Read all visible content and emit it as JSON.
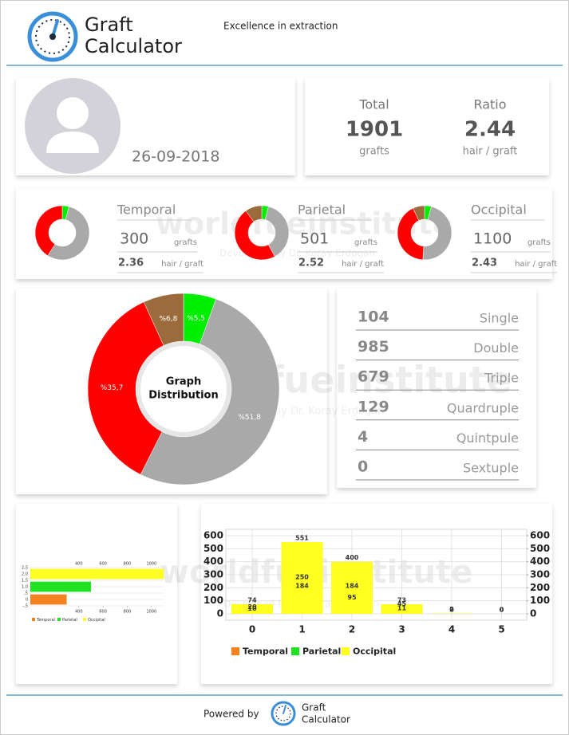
{
  "header": {
    "title": [
      "Graft",
      "Calculator"
    ],
    "tagline": "Excellence in extraction"
  },
  "profile": {
    "date": "26-09-2018"
  },
  "summary": [
    {
      "label": "Total",
      "value": 1901,
      "unit": "grafts"
    },
    {
      "label": "Ratio",
      "value": 2.44,
      "unit": "hair / graft"
    }
  ],
  "regions": [
    {
      "name": "Temporal",
      "grafts": 300,
      "grafts_unit": "grafts",
      "ratio": 2.36,
      "ratio_unit": "hair / graft"
    },
    {
      "name": "Parietal",
      "grafts": 501,
      "grafts_unit": "grafts",
      "ratio": 2.52,
      "ratio_unit": "hair / graft"
    },
    {
      "name": "Occipital",
      "grafts": 1100,
      "grafts_unit": "grafts",
      "ratio": 2.43,
      "ratio_unit": "hair / graft"
    }
  ],
  "watermark": {
    "name": "worldfueinstitute",
    "credit": "Developed by Dr. Koray Erdogan"
  },
  "graft_types": [
    {
      "count": 104,
      "name": "Single"
    },
    {
      "count": 985,
      "name": "Double"
    },
    {
      "count": 679,
      "name": "Triple"
    },
    {
      "count": 129,
      "name": "Quardruple"
    },
    {
      "count": 4,
      "name": "Quintpule"
    },
    {
      "count": 0,
      "name": "Sextuple"
    }
  ],
  "footer": {
    "label": "Powered by",
    "title": [
      "Graft",
      "Calculator"
    ]
  },
  "chart_data": [
    {
      "type": "donut",
      "values": [
        4,
        55,
        41
      ],
      "colors": [
        "#00ee00",
        "#a9a9a9",
        "#ff0000"
      ]
    },
    {
      "type": "donut",
      "values": [
        4,
        38,
        48,
        10
      ],
      "colors": [
        "#00ee00",
        "#a9a9a9",
        "#ff0000",
        "#9c6b3c"
      ]
    },
    {
      "type": "donut",
      "values": [
        4,
        47,
        42,
        7
      ],
      "colors": [
        "#00ee00",
        "#a9a9a9",
        "#ff0000",
        "#9c6b3c"
      ]
    },
    {
      "type": "donut",
      "title": [
        "Graph",
        "Distribution"
      ],
      "values": [
        5.5,
        51.8,
        35.7,
        6.8
      ],
      "value_labels": [
        "%5,5",
        "%51,8",
        "%35,7",
        "%6,8"
      ],
      "colors": [
        "#00ee00",
        "#a9a9a9",
        "#ff0000",
        "#9c6b3c"
      ]
    },
    {
      "type": "hbar",
      "series": [
        {
          "name": "Temporal",
          "color": "#f58220",
          "values": [
            300
          ]
        },
        {
          "name": "Parietal",
          "color": "#22e022",
          "values": [
            501
          ]
        },
        {
          "name": "Occipital",
          "color": "#ffff22",
          "values": [
            1100
          ]
        }
      ],
      "xlim": [
        0,
        1100
      ],
      "xticks": [
        400,
        600,
        800,
        1000
      ],
      "ylim": [
        -0.5,
        2.5
      ],
      "yticks": [
        {
          "value": 2.5,
          "label": "2,5"
        },
        {
          "value": 2,
          "label": "2,0"
        },
        {
          "value": 1.5,
          "label": "1,5"
        },
        {
          "value": 1,
          "label": "1,0"
        },
        {
          "value": 0.5,
          "label": ",5"
        },
        0,
        {
          "value": -0.5,
          "label": "-,5"
        }
      ],
      "grid": true
    },
    {
      "type": "bar",
      "categories": [
        "0",
        "1",
        "2",
        "3",
        "4",
        "5"
      ],
      "series": [
        {
          "name": "Temporal",
          "color": "#f58220",
          "values": [
            10,
            184,
            95,
            11,
            0,
            0
          ]
        },
        {
          "name": "Parietal",
          "color": "#22e022",
          "values": [
            20,
            250,
            184,
            45,
            2,
            0
          ]
        },
        {
          "name": "Occipital",
          "color": "#ffff22",
          "values": [
            74,
            551,
            400,
            73,
            2,
            0
          ]
        }
      ],
      "ylim": [
        0,
        600
      ],
      "yticks": [
        0,
        100,
        200,
        300,
        400,
        500,
        600
      ],
      "y2lim": [
        0,
        600
      ],
      "y2ticks": [
        0,
        100,
        200,
        300,
        400,
        500,
        600
      ],
      "grid": true
    }
  ]
}
